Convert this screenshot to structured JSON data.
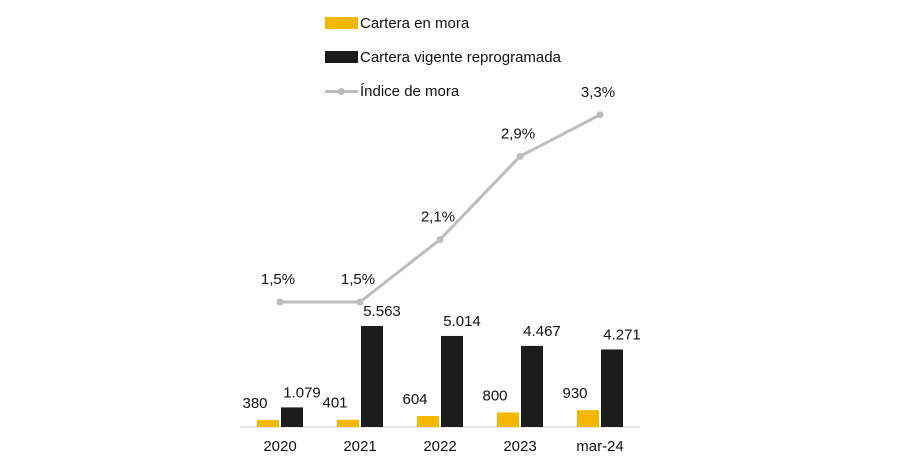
{
  "chart_data": {
    "type": "bar",
    "categories": [
      "2020",
      "2021",
      "2022",
      "2023",
      "mar-24"
    ],
    "series": [
      {
        "name": "Cartera en mora",
        "kind": "bar",
        "color": "#F5B800",
        "values": [
          380,
          401,
          604,
          800,
          930
        ],
        "labels": [
          "380",
          "401",
          "604",
          "800",
          "930"
        ]
      },
      {
        "name": "Cartera vigente reprogramada",
        "kind": "bar",
        "color": "#1C1C1C",
        "values": [
          1079,
          5563,
          5014,
          4467,
          4271
        ],
        "labels": [
          "1.079",
          "5.563",
          "5.014",
          "4.467",
          "4.271"
        ]
      },
      {
        "name": "Índice de mora",
        "kind": "line",
        "color": "#BDBDBD",
        "values": [
          1.5,
          1.5,
          2.1,
          2.9,
          3.3
        ],
        "labels": [
          "1,5%",
          "1,5%",
          "2,1%",
          "2,9%",
          "3,3%"
        ]
      }
    ],
    "legend_position": "top"
  }
}
